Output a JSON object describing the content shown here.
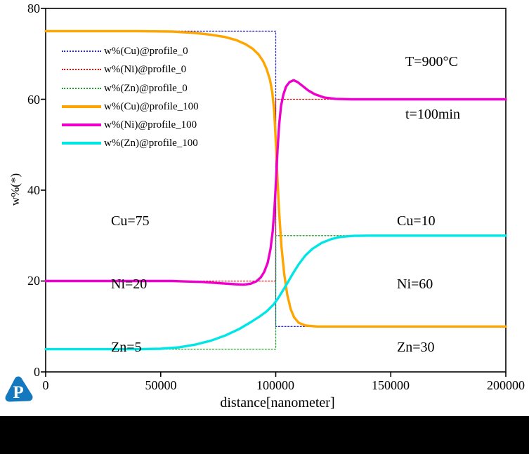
{
  "page": {
    "background": "#ffffff",
    "bottom_bar_color": "#000000"
  },
  "logo": {
    "name": "pandat-logo",
    "letter": "P",
    "color": "#1478be"
  },
  "annotations": {
    "conditions": {
      "line1": "T=900°C",
      "line2": "t=100min"
    },
    "left_composition": {
      "line1": "Cu=75",
      "line2": "Ni=20",
      "line3": "Zn=5"
    },
    "right_composition": {
      "line1": "Cu=10",
      "line2": "Ni=60",
      "line3": "Zn=30"
    }
  },
  "chart_data": {
    "type": "line",
    "title": "",
    "xlabel": "distance[nanometer]",
    "ylabel": "w%(*)",
    "xlim": [
      0,
      200000
    ],
    "ylim": [
      0,
      80
    ],
    "x_ticks": [
      0,
      50000,
      100000,
      150000,
      200000
    ],
    "x_tick_labels": [
      "0",
      "50000",
      "100000",
      "150000",
      "200000"
    ],
    "y_ticks": [
      0,
      20,
      40,
      60,
      80
    ],
    "y_tick_labels": [
      "0",
      "20",
      "40",
      "60",
      "80"
    ],
    "grid": false,
    "legend_position": "upper-left-inside",
    "series": [
      {
        "name": "w%(Cu)@profile_0",
        "color": "#2a2ad0",
        "style": "dotted",
        "width": 1.3,
        "points": [
          [
            0,
            75
          ],
          [
            100000,
            75
          ],
          [
            100000,
            10
          ],
          [
            200000,
            10
          ]
        ]
      },
      {
        "name": "w%(Ni)@profile_0",
        "color": "#e01010",
        "style": "dotted",
        "width": 1.3,
        "points": [
          [
            0,
            20
          ],
          [
            100000,
            20
          ],
          [
            100000,
            60
          ],
          [
            200000,
            60
          ]
        ]
      },
      {
        "name": "w%(Zn)@profile_0",
        "color": "#22a02c",
        "style": "dotted",
        "width": 1.3,
        "points": [
          [
            0,
            5
          ],
          [
            100000,
            5
          ],
          [
            100000,
            30
          ],
          [
            200000,
            30
          ]
        ]
      },
      {
        "name": "w%(Cu)@profile_100",
        "color": "#ffa500",
        "style": "solid",
        "width": 3.4,
        "points": [
          [
            0,
            75
          ],
          [
            40000,
            75
          ],
          [
            55000,
            74.9
          ],
          [
            65000,
            74.6
          ],
          [
            72000,
            74.2
          ],
          [
            78000,
            73.7
          ],
          [
            83000,
            73
          ],
          [
            87000,
            72.1
          ],
          [
            90000,
            71.1
          ],
          [
            92500,
            69.9
          ],
          [
            94500,
            68.4
          ],
          [
            96000,
            66.7
          ],
          [
            97500,
            64.3
          ],
          [
            98500,
            61.5
          ],
          [
            99300,
            57.5
          ],
          [
            100000,
            51
          ],
          [
            100700,
            43
          ],
          [
            101500,
            35
          ],
          [
            102500,
            27.5
          ],
          [
            103700,
            21.5
          ],
          [
            105000,
            17
          ],
          [
            106500,
            13.8
          ],
          [
            108000,
            12
          ],
          [
            110000,
            10.8
          ],
          [
            113000,
            10.2
          ],
          [
            118000,
            10
          ],
          [
            200000,
            10
          ]
        ]
      },
      {
        "name": "w%(Ni)@profile_100",
        "color": "#ee00cc",
        "style": "solid",
        "width": 3.4,
        "points": [
          [
            0,
            20
          ],
          [
            55000,
            20
          ],
          [
            68000,
            19.8
          ],
          [
            76000,
            19.5
          ],
          [
            82000,
            19.3
          ],
          [
            86000,
            19.2
          ],
          [
            89000,
            19.4
          ],
          [
            91500,
            19.9
          ],
          [
            93500,
            20.8
          ],
          [
            95000,
            22
          ],
          [
            96500,
            24
          ],
          [
            97700,
            27
          ],
          [
            98700,
            31
          ],
          [
            99500,
            36.5
          ],
          [
            100200,
            43
          ],
          [
            100800,
            49
          ],
          [
            101500,
            54.5
          ],
          [
            102300,
            58.5
          ],
          [
            103300,
            61
          ],
          [
            104500,
            62.8
          ],
          [
            106000,
            63.8
          ],
          [
            107800,
            64.2
          ],
          [
            109500,
            63.8
          ],
          [
            111500,
            63
          ],
          [
            114000,
            62
          ],
          [
            117000,
            61.1
          ],
          [
            121000,
            60.4
          ],
          [
            126000,
            60.1
          ],
          [
            133000,
            60
          ],
          [
            200000,
            60
          ]
        ]
      },
      {
        "name": "w%(Zn)@profile_100",
        "color": "#00e6e6",
        "style": "solid",
        "width": 3.4,
        "points": [
          [
            0,
            5
          ],
          [
            40000,
            5
          ],
          [
            50000,
            5.1
          ],
          [
            58000,
            5.4
          ],
          [
            65000,
            6
          ],
          [
            72000,
            6.9
          ],
          [
            78000,
            8
          ],
          [
            84000,
            9.4
          ],
          [
            89000,
            10.9
          ],
          [
            93000,
            12.2
          ],
          [
            96000,
            13.3
          ],
          [
            99000,
            14.8
          ],
          [
            101000,
            16.2
          ],
          [
            103000,
            17.8
          ],
          [
            105000,
            19.5
          ],
          [
            107500,
            21.7
          ],
          [
            110000,
            23.7
          ],
          [
            113000,
            25.7
          ],
          [
            116000,
            27.1
          ],
          [
            120000,
            28.4
          ],
          [
            124000,
            29.2
          ],
          [
            128000,
            29.7
          ],
          [
            134000,
            29.95
          ],
          [
            140000,
            30
          ],
          [
            200000,
            30
          ]
        ]
      }
    ]
  }
}
